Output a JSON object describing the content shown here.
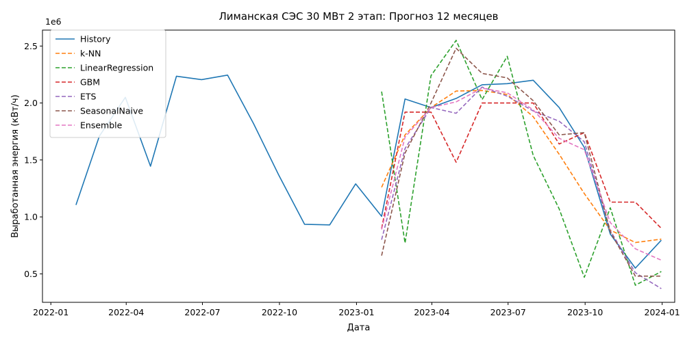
{
  "chart_data": {
    "type": "line",
    "title": "Лиманская СЭС 30 МВт 2 этап: Прогноз 12 месяцев",
    "xlabel": "Дата",
    "ylabel": "Выработанная энергия (кВт/ч)",
    "y_offset_label": "1e6",
    "y_scale": 1000000,
    "xlim": [
      "2021-12-22",
      "2024-01-16"
    ],
    "ylim": [
      250000,
      2640000
    ],
    "x_ticks": [
      {
        "date": "2022-01-01",
        "label": "2022-01"
      },
      {
        "date": "2022-04-01",
        "label": "2022-04"
      },
      {
        "date": "2022-07-01",
        "label": "2022-07"
      },
      {
        "date": "2022-10-01",
        "label": "2022-10"
      },
      {
        "date": "2023-01-01",
        "label": "2023-01"
      },
      {
        "date": "2023-04-01",
        "label": "2023-04"
      },
      {
        "date": "2023-07-01",
        "label": "2023-07"
      },
      {
        "date": "2023-10-01",
        "label": "2023-10"
      },
      {
        "date": "2024-01-01",
        "label": "2024-01"
      }
    ],
    "y_ticks": [
      {
        "value": 500000,
        "label": "0.5"
      },
      {
        "value": 1000000,
        "label": "1.0"
      },
      {
        "value": 1500000,
        "label": "1.5"
      },
      {
        "value": 2000000,
        "label": "2.0"
      },
      {
        "value": 2500000,
        "label": "2.5"
      }
    ],
    "legend_position": "top-left",
    "grid": false,
    "series": [
      {
        "name": "History",
        "color": "#1f77b4",
        "dash": "solid",
        "x": [
          "2022-01-31",
          "2022-02-28",
          "2022-03-31",
          "2022-04-30",
          "2022-05-31",
          "2022-06-30",
          "2022-07-31",
          "2022-08-31",
          "2022-09-30",
          "2022-10-31",
          "2022-11-30",
          "2022-12-31",
          "2023-01-31",
          "2023-02-28",
          "2023-03-31",
          "2023-04-30",
          "2023-05-31",
          "2023-06-30",
          "2023-07-31",
          "2023-08-31",
          "2023-09-30",
          "2023-10-31",
          "2023-11-30",
          "2023-12-31"
        ],
        "values": [
          1105000,
          1710000,
          2050000,
          1445000,
          2235000,
          2205000,
          2245000,
          1820000,
          1370000,
          935000,
          930000,
          1290000,
          1005000,
          2035000,
          1960000,
          2040000,
          2160000,
          2170000,
          2200000,
          1960000,
          1610000,
          850000,
          550000,
          795000
        ]
      },
      {
        "name": "k-NN",
        "color": "#ff7f0e",
        "dash": "dashed",
        "x": [
          "2023-01-31",
          "2023-02-28",
          "2023-03-31",
          "2023-04-30",
          "2023-05-31",
          "2023-06-30",
          "2023-07-31",
          "2023-08-31",
          "2023-09-30",
          "2023-10-31",
          "2023-11-30",
          "2023-12-31"
        ],
        "values": [
          1260000,
          1720000,
          1960000,
          2105000,
          2110000,
          2075000,
          1880000,
          1550000,
          1205000,
          885000,
          775000,
          805000
        ]
      },
      {
        "name": "LinearRegression",
        "color": "#2ca02c",
        "dash": "dashed",
        "x": [
          "2023-01-31",
          "2023-02-28",
          "2023-03-31",
          "2023-04-30",
          "2023-05-31",
          "2023-06-30",
          "2023-07-31",
          "2023-08-31",
          "2023-09-30",
          "2023-10-31",
          "2023-11-30",
          "2023-12-31"
        ],
        "values": [
          2100000,
          770000,
          2240000,
          2550000,
          2030000,
          2410000,
          1540000,
          1070000,
          470000,
          1080000,
          400000,
          520000
        ]
      },
      {
        "name": "GBM",
        "color": "#d62728",
        "dash": "dashed",
        "x": [
          "2023-01-31",
          "2023-02-28",
          "2023-03-31",
          "2023-04-30",
          "2023-05-31",
          "2023-06-30",
          "2023-07-31",
          "2023-08-31",
          "2023-09-30",
          "2023-10-31",
          "2023-11-30",
          "2023-12-31"
        ],
        "values": [
          900000,
          1920000,
          1920000,
          1480000,
          2000000,
          2000000,
          2000000,
          1640000,
          1740000,
          1130000,
          1130000,
          900000
        ]
      },
      {
        "name": "ETS",
        "color": "#9467bd",
        "dash": "dashed",
        "x": [
          "2023-01-31",
          "2023-02-28",
          "2023-03-31",
          "2023-04-30",
          "2023-05-31",
          "2023-06-30",
          "2023-07-31",
          "2023-08-31",
          "2023-09-30",
          "2023-10-31",
          "2023-11-30",
          "2023-12-31"
        ],
        "values": [
          800000,
          1600000,
          1960000,
          1910000,
          2140000,
          2060000,
          1930000,
          1840000,
          1660000,
          880000,
          510000,
          370000
        ]
      },
      {
        "name": "SeasonalNaive",
        "color": "#8c564b",
        "dash": "dashed",
        "x": [
          "2023-01-31",
          "2023-02-28",
          "2023-03-31",
          "2023-04-30",
          "2023-05-31",
          "2023-06-30",
          "2023-07-31",
          "2023-08-31",
          "2023-09-30",
          "2023-10-31",
          "2023-11-30",
          "2023-12-31"
        ],
        "values": [
          660000,
          1560000,
          2000000,
          2480000,
          2260000,
          2220000,
          2020000,
          1720000,
          1740000,
          870000,
          480000,
          480000
        ]
      },
      {
        "name": "Ensemble",
        "color": "#e377c2",
        "dash": "dashed",
        "x": [
          "2023-01-31",
          "2023-02-28",
          "2023-03-31",
          "2023-04-30",
          "2023-05-31",
          "2023-06-30",
          "2023-07-31",
          "2023-08-31",
          "2023-09-30",
          "2023-10-31",
          "2023-11-30",
          "2023-12-31"
        ],
        "values": [
          890000,
          1700000,
          1960000,
          2010000,
          2130000,
          2090000,
          1940000,
          1690000,
          1590000,
          950000,
          720000,
          620000
        ]
      }
    ]
  }
}
